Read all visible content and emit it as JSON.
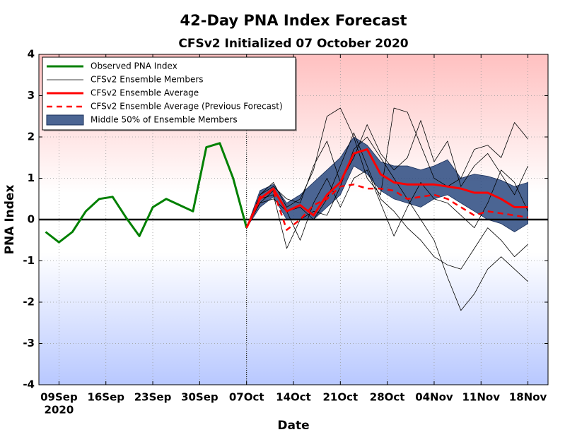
{
  "chart_data": {
    "type": "line",
    "title": "42-Day PNA Index Forecast",
    "subtitle": "CFSv2 Initialized 07 October 2020",
    "x_label": "Date",
    "y_label": "PNA Index",
    "x": [
      "2020-09-07",
      "2020-09-09",
      "2020-09-11",
      "2020-09-13",
      "2020-09-15",
      "2020-09-17",
      "2020-09-19",
      "2020-09-21",
      "2020-09-23",
      "2020-09-25",
      "2020-09-27",
      "2020-09-29",
      "2020-10-01",
      "2020-10-03",
      "2020-10-05",
      "2020-10-07",
      "2020-10-09",
      "2020-10-11",
      "2020-10-13",
      "2020-10-15",
      "2020-10-17",
      "2020-10-19",
      "2020-10-21",
      "2020-10-23",
      "2020-10-25",
      "2020-10-27",
      "2020-10-29",
      "2020-10-31",
      "2020-11-02",
      "2020-11-04",
      "2020-11-06",
      "2020-11-08",
      "2020-11-10",
      "2020-11-12",
      "2020-11-14",
      "2020-11-16",
      "2020-11-18"
    ],
    "xlim": [
      "2020-09-06",
      "2020-11-21"
    ],
    "xticks": [
      {
        "value": "2020-09-09",
        "label": "09Sep"
      },
      {
        "value": "2020-09-16",
        "label": "16Sep"
      },
      {
        "value": "2020-09-23",
        "label": "23Sep"
      },
      {
        "value": "2020-09-30",
        "label": "30Sep"
      },
      {
        "value": "2020-10-07",
        "label": "07Oct"
      },
      {
        "value": "2020-10-14",
        "label": "14Oct"
      },
      {
        "value": "2020-10-21",
        "label": "21Oct"
      },
      {
        "value": "2020-10-28",
        "label": "28Oct"
      },
      {
        "value": "2020-11-04",
        "label": "04Nov"
      },
      {
        "value": "2020-11-11",
        "label": "11Nov"
      },
      {
        "value": "2020-11-18",
        "label": "18Nov"
      }
    ],
    "xtick_year": "2020",
    "initialized": "2020-10-07",
    "ylim": [
      -4,
      4
    ],
    "yticks": [
      -4,
      -3,
      -2,
      -1,
      0,
      1,
      2,
      3,
      4
    ],
    "grid": true,
    "legend": "upper left",
    "series": [
      {
        "name": "Observed PNA Index",
        "kind": "line",
        "color": "#008000",
        "values": [
          -0.3,
          -0.55,
          -0.3,
          0.2,
          0.5,
          0.55,
          0.05,
          -0.4,
          0.3,
          0.5,
          0.35,
          0.2,
          1.75,
          1.85,
          1.0,
          -0.2,
          null,
          null,
          null,
          null,
          null,
          null,
          null,
          null,
          null,
          null,
          null,
          null,
          null,
          null,
          null,
          null,
          null,
          null,
          null,
          null,
          null
        ]
      },
      {
        "name": "CFSv2 Ensemble Members",
        "kind": "members",
        "color": "#000000",
        "members": [
          [
            null,
            null,
            null,
            null,
            null,
            null,
            null,
            null,
            null,
            null,
            null,
            null,
            null,
            null,
            null,
            -0.2,
            0.6,
            0.9,
            0.3,
            0.5,
            1.2,
            2.5,
            2.7,
            2.0,
            1.0,
            0.6,
            2.7,
            2.6,
            1.8,
            1.0,
            0.8,
            1.0,
            1.7,
            1.8,
            1.5,
            2.35,
            1.95
          ],
          [
            null,
            null,
            null,
            null,
            null,
            null,
            null,
            null,
            null,
            null,
            null,
            null,
            null,
            null,
            null,
            -0.2,
            0.5,
            0.6,
            -0.7,
            0.0,
            0.2,
            0.1,
            0.8,
            1.7,
            2.0,
            1.5,
            1.0,
            0.5,
            0.0,
            -0.5,
            -1.4,
            -2.2,
            -1.8,
            -1.2,
            -0.9,
            -1.2,
            -1.5
          ],
          [
            null,
            null,
            null,
            null,
            null,
            null,
            null,
            null,
            null,
            null,
            null,
            null,
            null,
            null,
            null,
            -0.2,
            0.4,
            0.7,
            0.2,
            0.3,
            0.0,
            0.5,
            1.3,
            2.1,
            1.3,
            0.5,
            0.2,
            -0.2,
            -0.5,
            -0.9,
            -1.1,
            -1.2,
            -0.7,
            -0.2,
            -0.5,
            -0.9,
            -0.6
          ],
          [
            null,
            null,
            null,
            null,
            null,
            null,
            null,
            null,
            null,
            null,
            null,
            null,
            null,
            null,
            null,
            -0.2,
            0.6,
            0.8,
            0.5,
            0.4,
            1.3,
            1.9,
            0.9,
            1.5,
            2.3,
            1.6,
            1.2,
            1.5,
            2.4,
            1.4,
            1.9,
            0.8,
            1.3,
            1.6,
            1.1,
            0.6,
            1.3
          ],
          [
            null,
            null,
            null,
            null,
            null,
            null,
            null,
            null,
            null,
            null,
            null,
            null,
            null,
            null,
            null,
            -0.2,
            0.4,
            0.5,
            0.2,
            -0.5,
            0.4,
            1.0,
            0.3,
            1.0,
            1.2,
            0.4,
            -0.4,
            0.3,
            0.9,
            0.5,
            0.4,
            0.1,
            -0.2,
            0.4,
            1.2,
            0.9,
            0.2
          ]
        ]
      },
      {
        "name": "CFSv2 Ensemble Average",
        "kind": "line",
        "color": "#ff0000",
        "values": [
          null,
          null,
          null,
          null,
          null,
          null,
          null,
          null,
          null,
          null,
          null,
          null,
          null,
          null,
          null,
          -0.2,
          0.5,
          0.75,
          0.2,
          0.35,
          0.1,
          0.6,
          0.9,
          1.6,
          1.7,
          1.1,
          0.9,
          0.85,
          0.85,
          0.85,
          0.8,
          0.75,
          0.65,
          0.65,
          0.5,
          0.3,
          0.3
        ]
      },
      {
        "name": "CFSv2 Ensemble Average (Previous Forecast)",
        "kind": "line",
        "dashed": true,
        "color": "#ff0000",
        "values": [
          null,
          null,
          null,
          null,
          null,
          null,
          null,
          null,
          null,
          null,
          null,
          null,
          null,
          null,
          null,
          -0.2,
          0.55,
          0.7,
          -0.25,
          0.0,
          0.35,
          0.5,
          0.8,
          0.85,
          0.75,
          0.75,
          0.7,
          0.5,
          0.55,
          0.6,
          0.5,
          0.3,
          0.1,
          0.2,
          0.15,
          0.1,
          0.05
        ]
      },
      {
        "name": "Middle 50% of Ensemble Members",
        "kind": "band",
        "color": "#2b4a80",
        "lower": [
          null,
          null,
          null,
          null,
          null,
          null,
          null,
          null,
          null,
          null,
          null,
          null,
          null,
          null,
          null,
          -0.2,
          0.3,
          0.55,
          0.0,
          0.0,
          0.0,
          0.3,
          0.6,
          1.3,
          1.1,
          0.7,
          0.5,
          0.4,
          0.3,
          0.5,
          0.6,
          0.4,
          0.2,
          0.0,
          -0.1,
          -0.3,
          -0.1
        ],
        "upper": [
          null,
          null,
          null,
          null,
          null,
          null,
          null,
          null,
          null,
          null,
          null,
          null,
          null,
          null,
          null,
          -0.2,
          0.7,
          0.85,
          0.4,
          0.6,
          0.9,
          1.2,
          1.5,
          2.0,
          1.8,
          1.4,
          1.3,
          1.3,
          1.2,
          1.3,
          1.45,
          1.0,
          1.1,
          1.05,
          0.95,
          0.8,
          0.9
        ]
      }
    ]
  }
}
